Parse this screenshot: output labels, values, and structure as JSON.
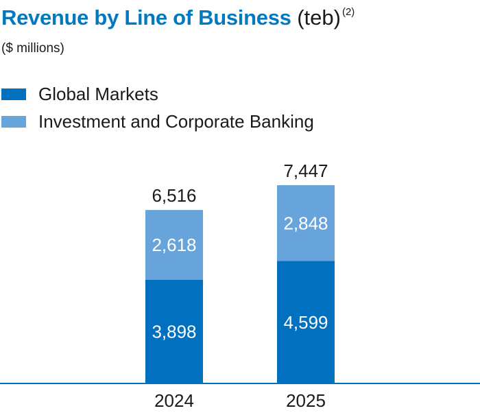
{
  "colors": {
    "global_markets": "#0070bf",
    "investment_corporate_banking": "#68a4dc",
    "title": "#0079c1",
    "text": "#1a1a1a"
  },
  "chart_data": {
    "type": "bar",
    "stacked": true,
    "title": "Revenue by Line of Business",
    "title_suffix": "(teb)",
    "title_footnote": "(2)",
    "subtitle": "($ millions)",
    "categories": [
      "2024",
      "2025"
    ],
    "series": [
      {
        "name": "Global Markets",
        "values": [
          3898,
          4599
        ]
      },
      {
        "name": "Investment and Corporate Banking",
        "values": [
          2618,
          2848
        ]
      }
    ],
    "totals": [
      6516,
      7447
    ],
    "value_labels": {
      "global_markets": [
        "3,898",
        "4,599"
      ],
      "investment_corporate_banking": [
        "2,618",
        "2,848"
      ],
      "totals": [
        "6,516",
        "7,447"
      ]
    },
    "legend_position": "top-left",
    "ylim": [
      0,
      7447
    ],
    "grid": false
  }
}
